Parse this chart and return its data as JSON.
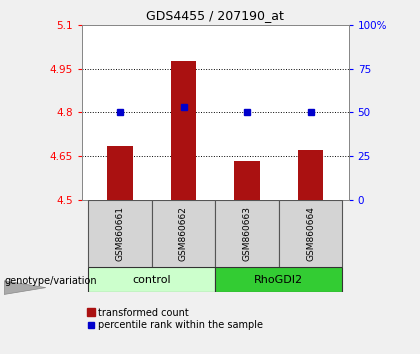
{
  "title": "GDS4455 / 207190_at",
  "samples": [
    "GSM860661",
    "GSM860662",
    "GSM860663",
    "GSM860664"
  ],
  "groups": [
    "control",
    "control",
    "RhoGDI2",
    "RhoGDI2"
  ],
  "bar_values": [
    4.685,
    4.975,
    4.635,
    4.67
  ],
  "percentile_values": [
    50,
    53,
    50,
    50
  ],
  "ylim_left": [
    4.5,
    5.1
  ],
  "ylim_right": [
    0,
    100
  ],
  "yticks_left": [
    4.5,
    4.65,
    4.8,
    4.95,
    5.1
  ],
  "yticks_right": [
    0,
    25,
    50,
    75,
    100
  ],
  "ytick_labels_left": [
    "4.5",
    "4.65",
    "4.8",
    "4.95",
    "5.1"
  ],
  "ytick_labels_right": [
    "0",
    "25",
    "50",
    "75",
    "100%"
  ],
  "bar_color": "#aa1111",
  "dot_color": "#0000cc",
  "control_color": "#ccffcc",
  "rhogdi2_color": "#33cc33",
  "legend_label_bar": "transformed count",
  "legend_label_dot": "percentile rank within the sample",
  "genotype_label": "genotype/variation",
  "plot_bg": "#ffffff",
  "sample_box_color": "#d4d4d4",
  "bar_width": 0.4,
  "title_fontsize": 9,
  "tick_fontsize": 7.5,
  "sample_fontsize": 6.5,
  "group_fontsize": 8,
  "legend_fontsize": 7,
  "geno_fontsize": 7
}
